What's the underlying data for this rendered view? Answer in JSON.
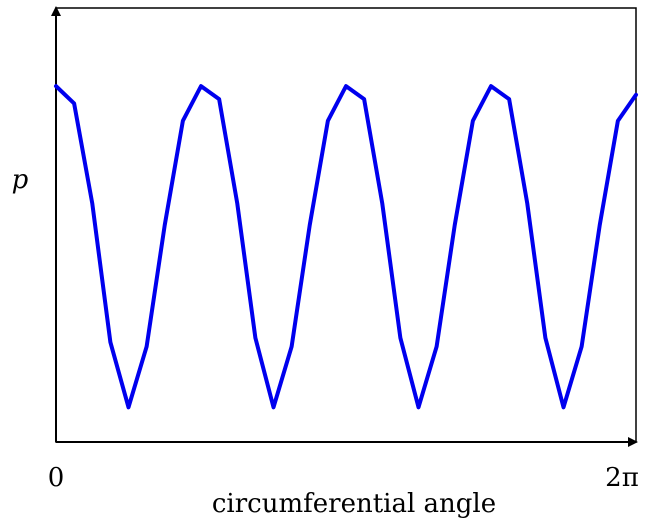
{
  "chart_data": {
    "type": "line",
    "title": "",
    "xlabel": "circumferential angle",
    "ylabel": "p",
    "x_tick_labels": [
      "0",
      "2π"
    ],
    "xlim": [
      0,
      6.283185
    ],
    "grid": false,
    "series": [
      {
        "color": "#0000ee",
        "x": [
          0,
          0.19635,
          0.392699,
          0.589049,
          0.785398,
          0.981748,
          1.178097,
          1.374447,
          1.570796,
          1.767146,
          1.963495,
          2.159845,
          2.356194,
          2.552544,
          2.748894,
          2.945243,
          3.141593,
          3.337942,
          3.534292,
          3.730641,
          3.926991,
          4.12334,
          4.31969,
          4.516039,
          4.712389,
          4.908739,
          5.105088,
          5.301438,
          5.497787,
          5.694137,
          5.890486,
          6.086836,
          6.283185
        ],
        "y": [
          0.82,
          0.78,
          0.55,
          0.23,
          0.08,
          0.22,
          0.5,
          0.74,
          0.82,
          0.79,
          0.55,
          0.24,
          0.08,
          0.22,
          0.5,
          0.74,
          0.82,
          0.79,
          0.55,
          0.24,
          0.08,
          0.22,
          0.5,
          0.74,
          0.82,
          0.79,
          0.55,
          0.24,
          0.08,
          0.22,
          0.5,
          0.74,
          0.8
        ]
      }
    ]
  }
}
